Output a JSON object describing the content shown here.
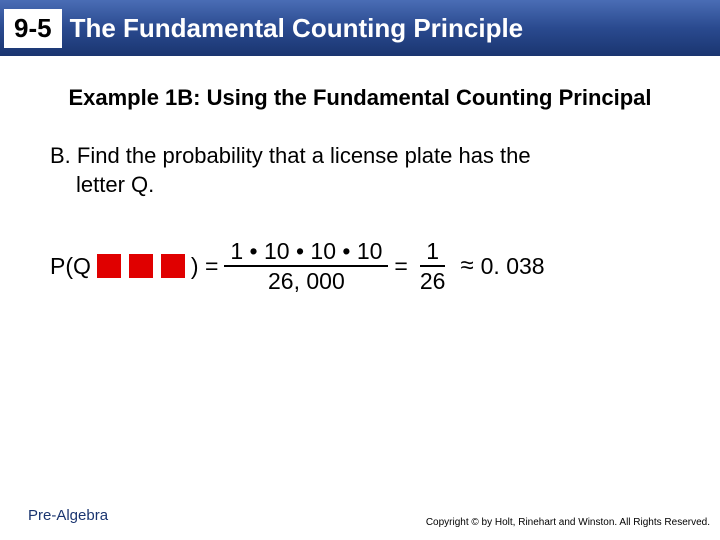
{
  "header": {
    "lesson_number": "9-5",
    "title": "The Fundamental Counting Principle",
    "bar_gradient_top": "#4a6db5",
    "bar_gradient_mid": "#2a4a8f",
    "bar_gradient_bottom": "#1a3570",
    "badge_bg": "#ffffff",
    "title_color": "#ffffff"
  },
  "example_heading": "Example 1B: Using the Fundamental Counting Principal",
  "problem": {
    "line1": "B. Find the probability that a license plate has the",
    "line2": "letter Q."
  },
  "equation": {
    "lhs_open": "P(Q",
    "lhs_close": ") =",
    "frac1_num": "1 • 10 • 10 • 10",
    "frac1_den": "26, 000",
    "mid_eq": "=",
    "frac2_num": "1",
    "frac2_den": "26",
    "approx": "≈",
    "result": "0. 038",
    "red_block_color": "#e00000",
    "red_block_count": 3
  },
  "footer": {
    "label": "Pre-Algebra",
    "copyright": "Copyright © by Holt, Rinehart and Winston. All Rights Reserved."
  },
  "styling": {
    "page_bg": "#ffffff",
    "text_color": "#000000",
    "heading_fontsize": 22,
    "body_fontsize": 22,
    "equation_fontsize": 23,
    "footer_color": "#1a3570"
  }
}
